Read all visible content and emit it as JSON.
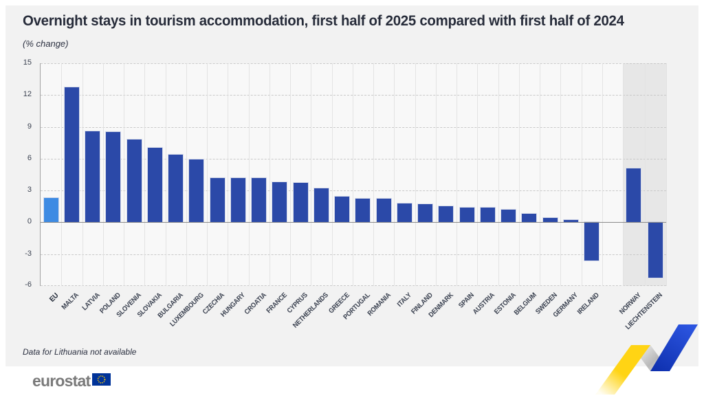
{
  "header": {
    "title": "Overnight stays in tourism accommodation, first half of 2025 compared with first half of 2024",
    "subtitle": "(% change)"
  },
  "footnote": "Data for Lithuania not available",
  "logo": {
    "text": "eurostat"
  },
  "colors": {
    "bar_blue": "#2b49a8",
    "eu_highlight_blue": "#3e8be3",
    "card_background": "#f2f2f2",
    "plot_background": "#f8f8f8",
    "efta_band": "#e7e7e7",
    "flag_blue": "#003399",
    "flag_stars_yellow": "#ffcc00",
    "ribbon_yellow": "#ffd414",
    "ribbon_blue": "#1c44cc"
  },
  "chart_data": {
    "type": "bar",
    "title": "Overnight stays in tourism accommodation, first half of 2025 compared with first half of 2024",
    "unit_label": "(% change)",
    "xlabel": "",
    "ylabel": "% change",
    "ylim": [
      -6,
      15
    ],
    "yticks": [
      15,
      12,
      9,
      6,
      3,
      0,
      -3,
      -6
    ],
    "grid": "dashed horizontal gridlines, light vertical column separators, solid zero line",
    "legend": "none",
    "categories": [
      "EU",
      "MALTA",
      "LATVIA",
      "POLAND",
      "SLOVENIA",
      "SLOVAKIA",
      "BULGARIA",
      "LUXEMBOURG",
      "CZECHIA",
      "HUNGARY",
      "CROATIA",
      "FRANCE",
      "CYPRUS",
      "NETHERLANDS",
      "GREECE",
      "PORTUGAL",
      "ROMANIA",
      "ITALY",
      "FINLAND",
      "DENMARK",
      "SPAIN",
      "AUSTRIA",
      "ESTONIA",
      "BELGIUM",
      "SWEDEN",
      "GERMANY",
      "IRELAND",
      "NORWAY",
      "LIECHTENSTEIN"
    ],
    "values": [
      2.3,
      12.7,
      8.6,
      8.5,
      7.8,
      7.0,
      6.4,
      5.9,
      4.2,
      4.2,
      4.2,
      3.8,
      3.7,
      3.2,
      2.4,
      2.2,
      2.2,
      1.8,
      1.7,
      1.5,
      1.4,
      1.4,
      1.2,
      0.8,
      0.4,
      0.2,
      -3.6,
      5.1,
      -5.2
    ],
    "highlight_category": "EU",
    "efta_categories": [
      "NORWAY",
      "LIECHTENSTEIN"
    ],
    "gap_before": "NORWAY",
    "footnote": "Data for Lithuania not available"
  }
}
